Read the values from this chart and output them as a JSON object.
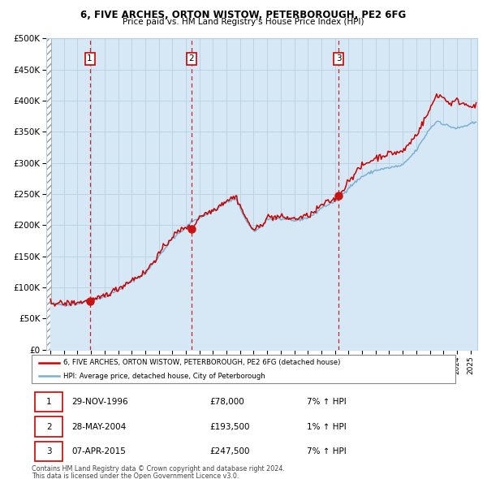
{
  "title1": "6, FIVE ARCHES, ORTON WISTOW, PETERBOROUGH, PE2 6FG",
  "title2": "Price paid vs. HM Land Registry's House Price Index (HPI)",
  "legend_line1": "6, FIVE ARCHES, ORTON WISTOW, PETERBOROUGH, PE2 6FG (detached house)",
  "legend_line2": "HPI: Average price, detached house, City of Peterborough",
  "transactions": [
    {
      "num": 1,
      "date": "29-NOV-1996",
      "price": 78000,
      "hpi_pct": "7%",
      "direction": "↑",
      "year_x": 1996.91
    },
    {
      "num": 2,
      "date": "28-MAY-2004",
      "price": 193500,
      "hpi_pct": "1%",
      "direction": "↑",
      "year_x": 2004.41
    },
    {
      "num": 3,
      "date": "07-APR-2015",
      "price": 247500,
      "hpi_pct": "7%",
      "direction": "↑",
      "year_x": 2015.27
    }
  ],
  "footnote1": "Contains HM Land Registry data © Crown copyright and database right 2024.",
  "footnote2": "This data is licensed under the Open Government Licence v3.0.",
  "line_color_red": "#cc0000",
  "line_color_blue": "#7ab0d4",
  "fill_color_blue": "#d6e8f5",
  "grid_color": "#b8cfe0",
  "dashed_line_color": "#cc0000",
  "ylim": [
    0,
    500000
  ],
  "yticks": [
    0,
    50000,
    100000,
    150000,
    200000,
    250000,
    300000,
    350000,
    400000,
    450000,
    500000
  ],
  "xmin": 1993.7,
  "xmax": 2025.5,
  "hpi_anchors": [
    [
      1994.0,
      74000
    ],
    [
      1995.0,
      72000
    ],
    [
      1996.0,
      74000
    ],
    [
      1997.0,
      79000
    ],
    [
      1998.0,
      85000
    ],
    [
      1999.0,
      96000
    ],
    [
      2000.0,
      110000
    ],
    [
      2001.0,
      122000
    ],
    [
      2002.0,
      150000
    ],
    [
      2003.0,
      178000
    ],
    [
      2004.0,
      196000
    ],
    [
      2004.5,
      207000
    ],
    [
      2005.0,
      212000
    ],
    [
      2006.0,
      222000
    ],
    [
      2007.0,
      237000
    ],
    [
      2007.7,
      242000
    ],
    [
      2008.5,
      205000
    ],
    [
      2009.0,
      190000
    ],
    [
      2009.5,
      196000
    ],
    [
      2010.0,
      210000
    ],
    [
      2011.0,
      210000
    ],
    [
      2012.0,
      207000
    ],
    [
      2013.0,
      212000
    ],
    [
      2013.5,
      218000
    ],
    [
      2014.0,
      228000
    ],
    [
      2015.0,
      238000
    ],
    [
      2015.3,
      243000
    ],
    [
      2016.0,
      260000
    ],
    [
      2017.0,
      278000
    ],
    [
      2018.0,
      288000
    ],
    [
      2019.0,
      292000
    ],
    [
      2020.0,
      296000
    ],
    [
      2021.0,
      320000
    ],
    [
      2022.0,
      355000
    ],
    [
      2022.6,
      368000
    ],
    [
      2023.0,
      362000
    ],
    [
      2024.0,
      355000
    ],
    [
      2025.0,
      362000
    ],
    [
      2025.4,
      365000
    ]
  ],
  "prop_anchors": [
    [
      1994.0,
      76000
    ],
    [
      1995.0,
      74000
    ],
    [
      1996.0,
      76000
    ],
    [
      1996.91,
      78000
    ],
    [
      1997.5,
      81000
    ],
    [
      1998.0,
      87000
    ],
    [
      1999.0,
      98000
    ],
    [
      2000.0,
      112000
    ],
    [
      2001.0,
      124000
    ],
    [
      2002.0,
      153000
    ],
    [
      2003.0,
      182000
    ],
    [
      2004.0,
      198000
    ],
    [
      2004.41,
      193500
    ],
    [
      2004.5,
      196000
    ],
    [
      2005.0,
      214000
    ],
    [
      2006.0,
      224000
    ],
    [
      2007.0,
      240000
    ],
    [
      2007.7,
      246000
    ],
    [
      2008.5,
      208000
    ],
    [
      2009.0,
      192000
    ],
    [
      2009.5,
      198000
    ],
    [
      2010.0,
      213000
    ],
    [
      2011.0,
      213000
    ],
    [
      2012.0,
      210000
    ],
    [
      2013.0,
      215000
    ],
    [
      2013.5,
      221000
    ],
    [
      2014.0,
      232000
    ],
    [
      2015.0,
      242000
    ],
    [
      2015.27,
      247500
    ],
    [
      2015.5,
      252000
    ],
    [
      2016.0,
      272000
    ],
    [
      2017.0,
      295000
    ],
    [
      2018.0,
      308000
    ],
    [
      2019.0,
      315000
    ],
    [
      2020.0,
      318000
    ],
    [
      2021.0,
      345000
    ],
    [
      2022.0,
      385000
    ],
    [
      2022.5,
      410000
    ],
    [
      2023.0,
      405000
    ],
    [
      2023.5,
      395000
    ],
    [
      2024.0,
      400000
    ],
    [
      2024.5,
      395000
    ],
    [
      2025.0,
      393000
    ],
    [
      2025.4,
      390000
    ]
  ]
}
